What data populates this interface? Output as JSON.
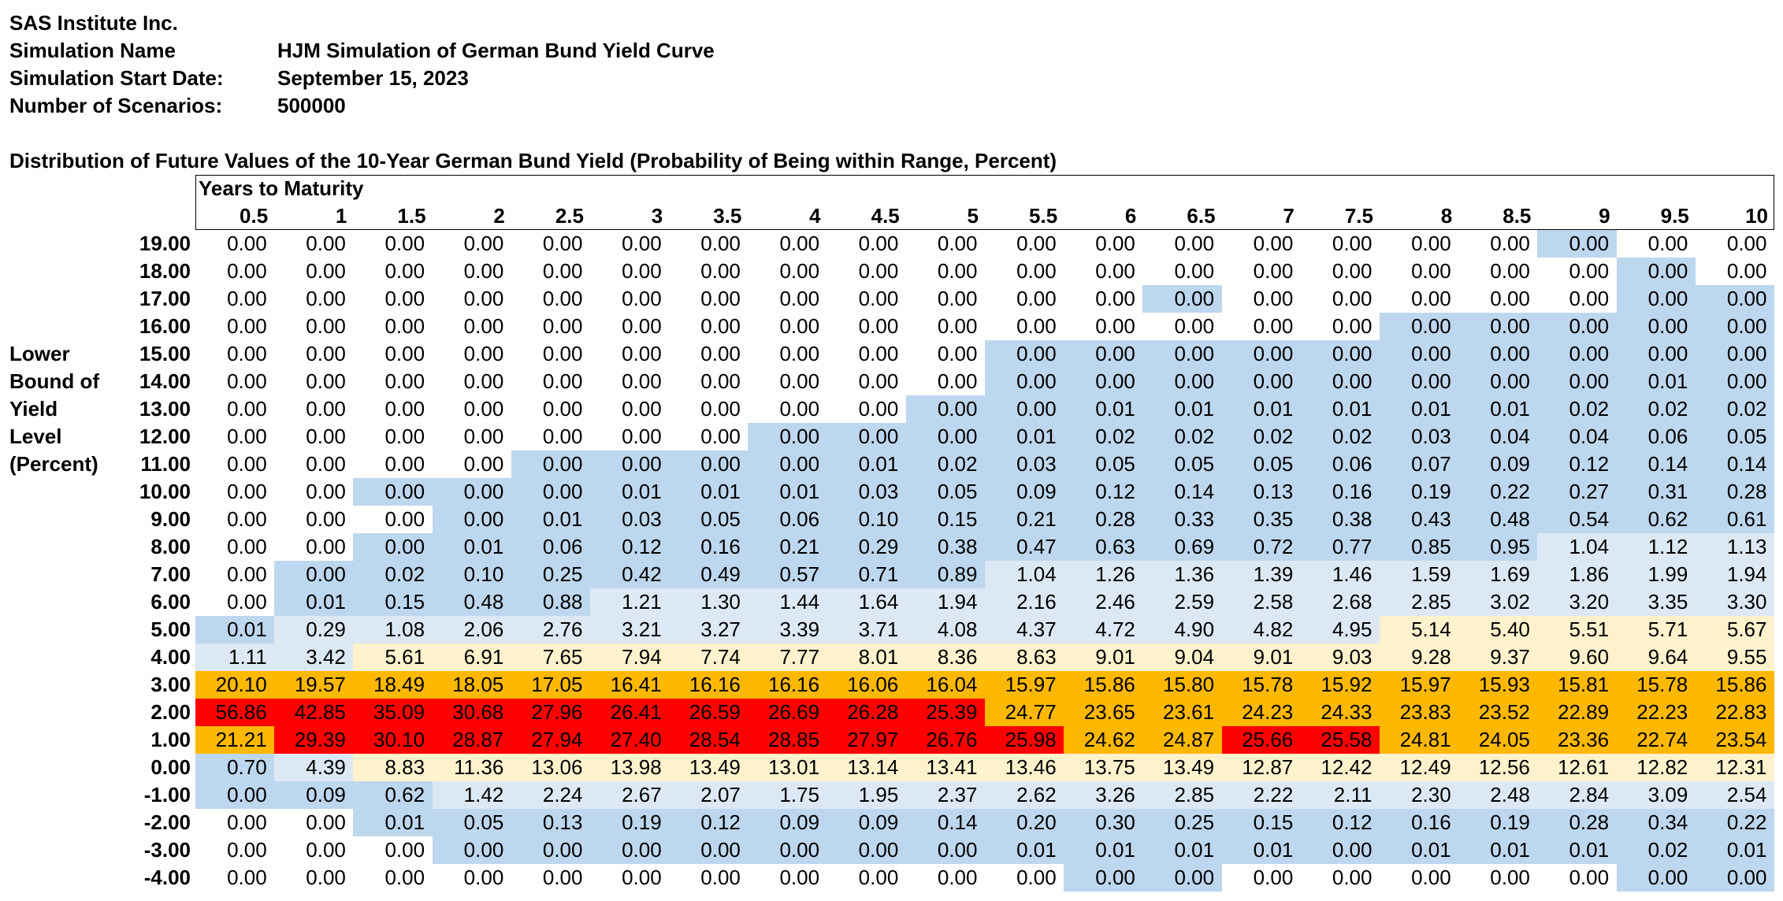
{
  "header": {
    "company": "SAS Institute Inc.",
    "rows": [
      {
        "label": "Simulation Name",
        "value": "HJM Simulation of German Bund Yield Curve"
      },
      {
        "label": "Simulation Start Date:",
        "value": "September 15, 2023"
      },
      {
        "label": "Number of Scenarios:",
        "value": "500000"
      }
    ]
  },
  "table": {
    "title": "Distribution of Future Values of the 10-Year German Bund Yield (Probability of Being within Range, Percent)",
    "column_group_label": "Years to Maturity",
    "row_axis_label": [
      "Lower",
      "Bound of",
      "Yield",
      "Level",
      "(Percent)"
    ],
    "columns": [
      "0.5",
      "1",
      "1.5",
      "2",
      "2.5",
      "3",
      "3.5",
      "4",
      "4.5",
      "5",
      "5.5",
      "6",
      "6.5",
      "7",
      "7.5",
      "8",
      "8.5",
      "9",
      "9.5",
      "10"
    ],
    "rows": [
      {
        "label": "19.00",
        "values": [
          "0.00",
          "0.00",
          "0.00",
          "0.00",
          "0.00",
          "0.00",
          "0.00",
          "0.00",
          "0.00",
          "0.00",
          "0.00",
          "0.00",
          "0.00",
          "0.00",
          "0.00",
          "0.00",
          "0.00",
          "0.00",
          "0.00",
          "0.00"
        ],
        "shade": "00000000000000000200"
      },
      {
        "label": "18.00",
        "values": [
          "0.00",
          "0.00",
          "0.00",
          "0.00",
          "0.00",
          "0.00",
          "0.00",
          "0.00",
          "0.00",
          "0.00",
          "0.00",
          "0.00",
          "0.00",
          "0.00",
          "0.00",
          "0.00",
          "0.00",
          "0.00",
          "0.00",
          "0.00"
        ],
        "shade": "00000000000000000020"
      },
      {
        "label": "17.00",
        "values": [
          "0.00",
          "0.00",
          "0.00",
          "0.00",
          "0.00",
          "0.00",
          "0.00",
          "0.00",
          "0.00",
          "0.00",
          "0.00",
          "0.00",
          "0.00",
          "0.00",
          "0.00",
          "0.00",
          "0.00",
          "0.00",
          "0.00",
          "0.00"
        ],
        "shade": "00000000000020000022"
      },
      {
        "label": "16.00",
        "values": [
          "0.00",
          "0.00",
          "0.00",
          "0.00",
          "0.00",
          "0.00",
          "0.00",
          "0.00",
          "0.00",
          "0.00",
          "0.00",
          "0.00",
          "0.00",
          "0.00",
          "0.00",
          "0.00",
          "0.00",
          "0.00",
          "0.00",
          "0.00"
        ],
        "shade": "00000000000000022222"
      },
      {
        "label": "15.00",
        "values": [
          "0.00",
          "0.00",
          "0.00",
          "0.00",
          "0.00",
          "0.00",
          "0.00",
          "0.00",
          "0.00",
          "0.00",
          "0.00",
          "0.00",
          "0.00",
          "0.00",
          "0.00",
          "0.00",
          "0.00",
          "0.00",
          "0.00",
          "0.00"
        ],
        "shade": "00000000002222222222"
      },
      {
        "label": "14.00",
        "values": [
          "0.00",
          "0.00",
          "0.00",
          "0.00",
          "0.00",
          "0.00",
          "0.00",
          "0.00",
          "0.00",
          "0.00",
          "0.00",
          "0.00",
          "0.00",
          "0.00",
          "0.00",
          "0.00",
          "0.00",
          "0.00",
          "0.01",
          "0.00"
        ],
        "shade": "00000000002222222222"
      },
      {
        "label": "13.00",
        "values": [
          "0.00",
          "0.00",
          "0.00",
          "0.00",
          "0.00",
          "0.00",
          "0.00",
          "0.00",
          "0.00",
          "0.00",
          "0.00",
          "0.01",
          "0.01",
          "0.01",
          "0.01",
          "0.01",
          "0.01",
          "0.02",
          "0.02",
          "0.02"
        ],
        "shade": "00000000022222222222"
      },
      {
        "label": "12.00",
        "values": [
          "0.00",
          "0.00",
          "0.00",
          "0.00",
          "0.00",
          "0.00",
          "0.00",
          "0.00",
          "0.00",
          "0.00",
          "0.01",
          "0.02",
          "0.02",
          "0.02",
          "0.02",
          "0.03",
          "0.04",
          "0.04",
          "0.06",
          "0.05"
        ],
        "shade": "00000002222222222222"
      },
      {
        "label": "11.00",
        "values": [
          "0.00",
          "0.00",
          "0.00",
          "0.00",
          "0.00",
          "0.00",
          "0.00",
          "0.00",
          "0.01",
          "0.02",
          "0.03",
          "0.05",
          "0.05",
          "0.05",
          "0.06",
          "0.07",
          "0.09",
          "0.12",
          "0.14",
          "0.14"
        ],
        "shade": "00002222222222222222"
      },
      {
        "label": "10.00",
        "values": [
          "0.00",
          "0.00",
          "0.00",
          "0.00",
          "0.00",
          "0.01",
          "0.01",
          "0.01",
          "0.03",
          "0.05",
          "0.09",
          "0.12",
          "0.14",
          "0.13",
          "0.16",
          "0.19",
          "0.22",
          "0.27",
          "0.31",
          "0.28"
        ],
        "shade": "00222222222222222222"
      },
      {
        "label": "9.00",
        "values": [
          "0.00",
          "0.00",
          "0.00",
          "0.00",
          "0.01",
          "0.03",
          "0.05",
          "0.06",
          "0.10",
          "0.15",
          "0.21",
          "0.28",
          "0.33",
          "0.35",
          "0.38",
          "0.43",
          "0.48",
          "0.54",
          "0.62",
          "0.61"
        ],
        "shade": "00022222222222222222"
      },
      {
        "label": "8.00",
        "values": [
          "0.00",
          "0.00",
          "0.00",
          "0.01",
          "0.06",
          "0.12",
          "0.16",
          "0.21",
          "0.29",
          "0.38",
          "0.47",
          "0.63",
          "0.69",
          "0.72",
          "0.77",
          "0.85",
          "0.95",
          "1.04",
          "1.12",
          "1.13"
        ],
        "shade": "00222222222222222111"
      },
      {
        "label": "7.00",
        "values": [
          "0.00",
          "0.00",
          "0.02",
          "0.10",
          "0.25",
          "0.42",
          "0.49",
          "0.57",
          "0.71",
          "0.89",
          "1.04",
          "1.26",
          "1.36",
          "1.39",
          "1.46",
          "1.59",
          "1.69",
          "1.86",
          "1.99",
          "1.94"
        ],
        "shade": "02222222221111111111"
      },
      {
        "label": "6.00",
        "values": [
          "0.00",
          "0.01",
          "0.15",
          "0.48",
          "0.88",
          "1.21",
          "1.30",
          "1.44",
          "1.64",
          "1.94",
          "2.16",
          "2.46",
          "2.59",
          "2.58",
          "2.68",
          "2.85",
          "3.02",
          "3.20",
          "3.35",
          "3.30"
        ],
        "shade": "02222111111111111111"
      },
      {
        "label": "5.00",
        "values": [
          "0.01",
          "0.29",
          "1.08",
          "2.06",
          "2.76",
          "3.21",
          "3.27",
          "3.39",
          "3.71",
          "4.08",
          "4.37",
          "4.72",
          "4.90",
          "4.82",
          "4.95",
          "5.14",
          "5.40",
          "5.51",
          "5.71",
          "5.67"
        ],
        "shade": "21111111111111133333"
      },
      {
        "label": "4.00",
        "values": [
          "1.11",
          "3.42",
          "5.61",
          "6.91",
          "7.65",
          "7.94",
          "7.74",
          "7.77",
          "8.01",
          "8.36",
          "8.63",
          "9.01",
          "9.04",
          "9.01",
          "9.03",
          "9.28",
          "9.37",
          "9.60",
          "9.64",
          "9.55"
        ],
        "shade": "11333333333333333333"
      },
      {
        "label": "3.00",
        "values": [
          "20.10",
          "19.57",
          "18.49",
          "18.05",
          "17.05",
          "16.41",
          "16.16",
          "16.16",
          "16.06",
          "16.04",
          "15.97",
          "15.86",
          "15.80",
          "15.78",
          "15.92",
          "15.97",
          "15.93",
          "15.81",
          "15.78",
          "15.86"
        ],
        "shade": "44444444444444444444"
      },
      {
        "label": "2.00",
        "values": [
          "56.86",
          "42.85",
          "35.09",
          "30.68",
          "27.96",
          "26.41",
          "26.59",
          "26.69",
          "26.28",
          "25.39",
          "24.77",
          "23.65",
          "23.61",
          "24.23",
          "24.33",
          "23.83",
          "23.52",
          "22.89",
          "22.23",
          "22.83"
        ],
        "shade": "55555555554444444444"
      },
      {
        "label": "1.00",
        "values": [
          "21.21",
          "29.39",
          "30.10",
          "28.87",
          "27.94",
          "27.40",
          "28.54",
          "28.85",
          "27.97",
          "26.76",
          "25.98",
          "24.62",
          "24.87",
          "25.66",
          "25.58",
          "24.81",
          "24.05",
          "23.36",
          "22.74",
          "23.54"
        ],
        "shade": "45555555555445544444"
      },
      {
        "label": "0.00",
        "values": [
          "0.70",
          "4.39",
          "8.83",
          "11.36",
          "13.06",
          "13.98",
          "13.49",
          "13.01",
          "13.14",
          "13.41",
          "13.46",
          "13.75",
          "13.49",
          "12.87",
          "12.42",
          "12.49",
          "12.56",
          "12.61",
          "12.82",
          "12.31"
        ],
        "shade": "21333333333333333333"
      },
      {
        "label": "-1.00",
        "values": [
          "0.00",
          "0.09",
          "0.62",
          "1.42",
          "2.24",
          "2.67",
          "2.07",
          "1.75",
          "1.95",
          "2.37",
          "2.62",
          "3.26",
          "2.85",
          "2.22",
          "2.11",
          "2.30",
          "2.48",
          "2.84",
          "3.09",
          "2.54"
        ],
        "shade": "22211111111111111111"
      },
      {
        "label": "-2.00",
        "values": [
          "0.00",
          "0.00",
          "0.01",
          "0.05",
          "0.13",
          "0.19",
          "0.12",
          "0.09",
          "0.09",
          "0.14",
          "0.20",
          "0.30",
          "0.25",
          "0.15",
          "0.12",
          "0.16",
          "0.19",
          "0.28",
          "0.34",
          "0.22"
        ],
        "shade": "00222222222222222222"
      },
      {
        "label": "-3.00",
        "values": [
          "0.00",
          "0.00",
          "0.00",
          "0.00",
          "0.00",
          "0.00",
          "0.00",
          "0.00",
          "0.00",
          "0.00",
          "0.01",
          "0.01",
          "0.01",
          "0.01",
          "0.00",
          "0.01",
          "0.01",
          "0.01",
          "0.02",
          "0.01"
        ],
        "shade": "00022222222222222222"
      },
      {
        "label": "-4.00",
        "values": [
          "0.00",
          "0.00",
          "0.00",
          "0.00",
          "0.00",
          "0.00",
          "0.00",
          "0.00",
          "0.00",
          "0.00",
          "0.00",
          "0.00",
          "0.00",
          "0.00",
          "0.00",
          "0.00",
          "0.00",
          "0.00",
          "0.00",
          "0.00"
        ],
        "shade": "00000000000220000022"
      }
    ],
    "colors": {
      "0": "#ffffff",
      "1": "#dde8f5",
      "2": "#bdd7ee",
      "3": "#fff2cc",
      "4": "#ffb800",
      "5": "#ff0000"
    }
  }
}
